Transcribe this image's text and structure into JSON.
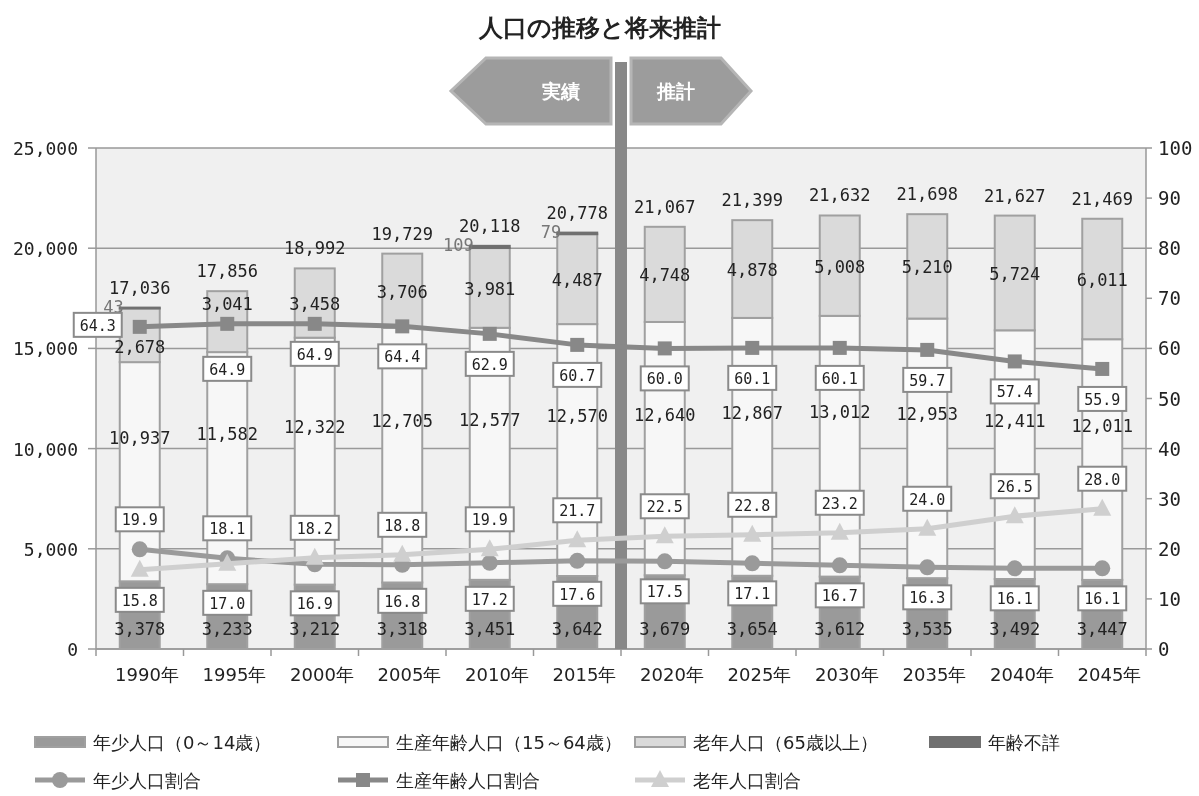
{
  "chart_data": {
    "type": "bar",
    "title": "人口の推移と将来推計",
    "stacked": true,
    "x": [
      1990,
      1995,
      2000,
      2005,
      2010,
      2015,
      2020,
      2025,
      2030,
      2035,
      2040,
      2045
    ],
    "xlim": [
      1987.5,
      2047.5
    ],
    "xticks": [
      {
        "value": 1990,
        "label": "1990年"
      },
      {
        "value": 1995,
        "label": "1995年"
      },
      {
        "value": 2000,
        "label": "2000年"
      },
      {
        "value": 2005,
        "label": "2005年"
      },
      {
        "value": 2010,
        "label": "2010年"
      },
      {
        "value": 2015,
        "label": "2015年"
      },
      {
        "value": 2020,
        "label": "2020年"
      },
      {
        "value": 2025,
        "label": "2025年"
      },
      {
        "value": 2030,
        "label": "2030年"
      },
      {
        "value": 2035,
        "label": "2035年"
      },
      {
        "value": 2040,
        "label": "2040年"
      },
      {
        "value": 2045,
        "label": "2045年"
      }
    ],
    "ylim": [
      0,
      25000
    ],
    "yticks": [
      {
        "value": 0,
        "label": "0"
      },
      {
        "value": 5000,
        "label": "5,000"
      },
      {
        "value": 10000,
        "label": "10,000"
      },
      {
        "value": 15000,
        "label": "15,000"
      },
      {
        "value": 20000,
        "label": "20,000"
      },
      {
        "value": 25000,
        "label": "25,000"
      }
    ],
    "y2lim": [
      0,
      100
    ],
    "y2ticks": [
      0,
      10,
      20,
      30,
      40,
      50,
      60,
      70,
      80,
      90,
      100
    ],
    "grid": "y",
    "legend": "bottom",
    "series": [
      {
        "name": "年少人口（0～14歳）",
        "color": "#9a9a9a",
        "values": [
          3378,
          3233,
          3212,
          3318,
          3451,
          3642,
          3679,
          3654,
          3612,
          3535,
          3492,
          3447
        ],
        "value_labels": [
          "3,378",
          "3,233",
          "3,212",
          "3,318",
          "3,451",
          "3,642",
          "3,679",
          "3,654",
          "3,612",
          "3,535",
          "3,492",
          "3,447"
        ]
      },
      {
        "name": "生産年齢人口（15～64歳）",
        "color": "#f7f7f7",
        "values": [
          10937,
          11582,
          12322,
          12705,
          12577,
          12570,
          12640,
          12867,
          13012,
          12953,
          12411,
          12011
        ],
        "value_labels": [
          "10,937",
          "11,582",
          "12,322",
          "12,705",
          "12,577",
          "12,570",
          "12,640",
          "12,867",
          "13,012",
          "12,953",
          "12,411",
          "12,011"
        ]
      },
      {
        "name": "老年人口（65歳以上）",
        "color": "#dadada",
        "values": [
          2678,
          3041,
          3458,
          3706,
          3981,
          4487,
          4748,
          4878,
          5008,
          5210,
          5724,
          6011
        ],
        "value_labels": [
          "2,678",
          "3,041",
          "3,458",
          "3,706",
          "3,981",
          "4,487",
          "4,748",
          "4,878",
          "5,008",
          "5,210",
          "5,724",
          "6,011"
        ]
      },
      {
        "name": "年齢不詳",
        "color": "#707070",
        "values": [
          43,
          null,
          null,
          null,
          109,
          79,
          null,
          null,
          null,
          null,
          null,
          null
        ],
        "value_labels": [
          "43",
          null,
          null,
          null,
          "109",
          "79",
          null,
          null,
          null,
          null,
          null,
          null
        ]
      },
      {
        "name": "年少人口割合",
        "type": "line",
        "axis": "y2",
        "marker": "circle",
        "color": "#9a9a9a",
        "values": [
          19.9,
          18.1,
          16.9,
          16.8,
          17.2,
          17.6,
          17.5,
          17.1,
          16.7,
          16.3,
          16.1,
          16.1
        ],
        "value_labels": [
          "19.9",
          "18.1",
          "16.9",
          "16.8",
          "17.2",
          "17.6",
          "17.5",
          "17.1",
          "16.7",
          "16.3",
          "16.1",
          "16.1"
        ]
      },
      {
        "name": "生産年齢人口割合",
        "type": "line",
        "axis": "y2",
        "marker": "square",
        "color": "#888888",
        "values": [
          64.3,
          64.9,
          64.9,
          64.4,
          62.9,
          60.7,
          60.0,
          60.1,
          60.1,
          59.7,
          57.4,
          55.9
        ],
        "value_labels": [
          "64.3",
          "64.9",
          "64.9",
          "64.4",
          "62.9",
          "60.7",
          "60.0",
          "60.1",
          "60.1",
          "59.7",
          "57.4",
          "55.9"
        ]
      },
      {
        "name": "老年人口割合",
        "type": "line",
        "axis": "y2",
        "marker": "triangle",
        "color": "#cfcfcf",
        "values": [
          15.8,
          17.0,
          18.2,
          18.8,
          19.9,
          21.7,
          22.5,
          22.8,
          23.2,
          24.0,
          26.5,
          28.0
        ],
        "value_labels": [
          "15.8",
          "17.0",
          "18.2",
          "18.8",
          "19.9",
          "21.7",
          "22.5",
          "22.8",
          "23.2",
          "24.0",
          "26.5",
          "28.0"
        ]
      }
    ],
    "totals": [
      "17,036",
      "17,856",
      "18,992",
      "19,729",
      "20,118",
      "20,778",
      "21,067",
      "21,399",
      "21,632",
      "21,698",
      "21,627",
      "21,469"
    ],
    "ref_lines": [
      {
        "axis": "x",
        "value": 2017.5,
        "color": "#888888"
      }
    ],
    "annotations": [
      "実績",
      "推計"
    ]
  }
}
